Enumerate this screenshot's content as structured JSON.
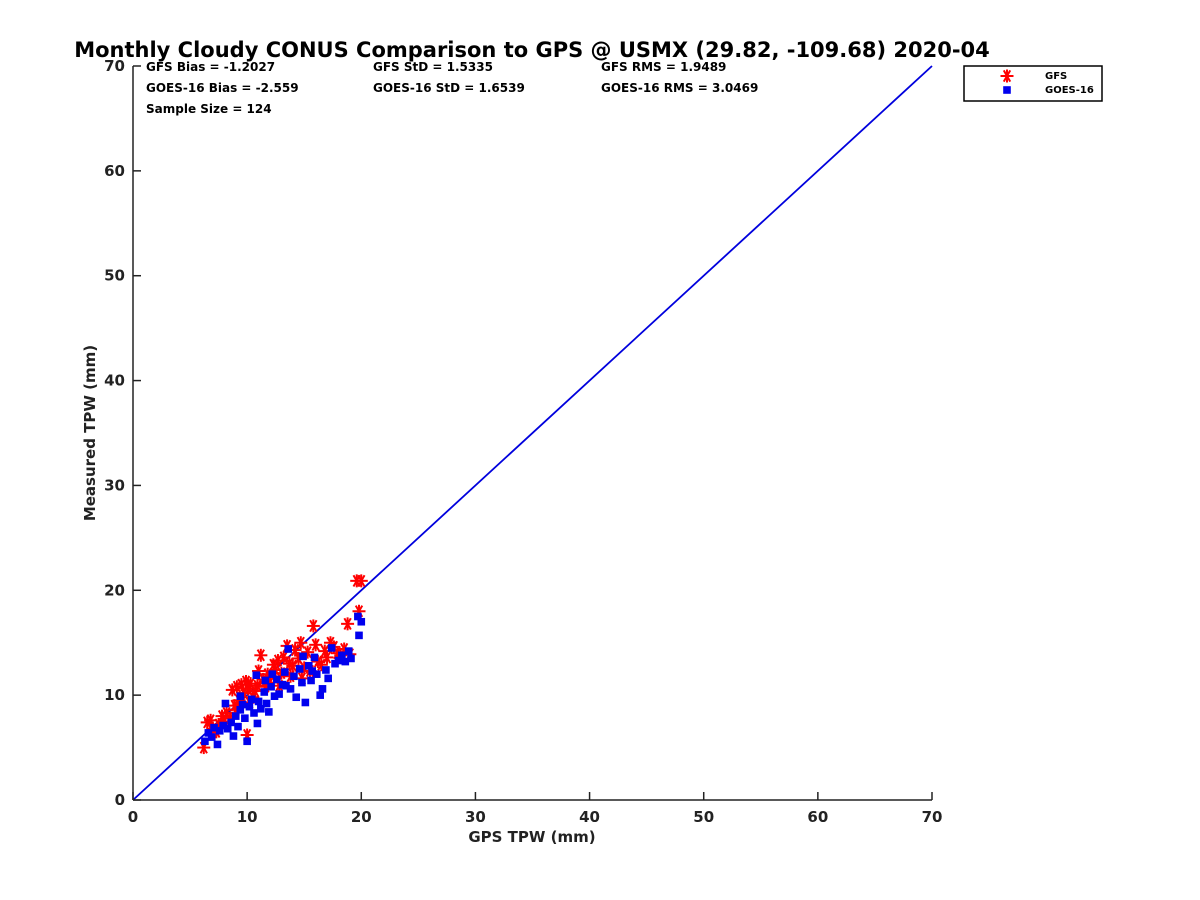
{
  "chart_data": {
    "type": "scatter",
    "title": "Monthly Cloudy CONUS Comparison to GPS @ USMX (29.82, -109.68) 2020-04",
    "xlabel": "GPS TPW (mm)",
    "ylabel": "Measured TPW (mm)",
    "xlim": [
      0,
      70
    ],
    "ylim": [
      0,
      70
    ],
    "xticks": [
      0,
      10,
      20,
      30,
      40,
      50,
      60,
      70
    ],
    "yticks": [
      0,
      10,
      20,
      30,
      40,
      50,
      60,
      70
    ],
    "grid": false,
    "legend_position": "top-right outside",
    "stats": {
      "gfs_bias": "GFS Bias = -1.2027",
      "gfs_std": "GFS StD = 1.5335",
      "gfs_rms": "GFS RMS = 1.9489",
      "goes_bias": "GOES-16 Bias = -2.559",
      "goes_std": "GOES-16 StD = 1.6539",
      "goes_rms": "GOES-16 RMS = 3.0469",
      "sample": "Sample Size = 124"
    },
    "reference_line": {
      "x": [
        0,
        70
      ],
      "y": [
        0,
        70
      ],
      "color": "#0000dd"
    },
    "series": [
      {
        "name": "GFS",
        "marker": "asterisk",
        "color": "#ff0000",
        "points": [
          [
            6.2,
            5.0
          ],
          [
            6.5,
            7.4
          ],
          [
            6.8,
            7.6
          ],
          [
            7.0,
            6.8
          ],
          [
            7.3,
            6.5
          ],
          [
            7.5,
            7.2
          ],
          [
            7.8,
            8.0
          ],
          [
            8.0,
            7.5
          ],
          [
            8.2,
            8.3
          ],
          [
            8.5,
            7.8
          ],
          [
            8.7,
            10.5
          ],
          [
            8.9,
            9.0
          ],
          [
            9.1,
            10.8
          ],
          [
            9.3,
            9.5
          ],
          [
            9.5,
            11.0
          ],
          [
            9.7,
            10.2
          ],
          [
            9.9,
            11.3
          ],
          [
            10.0,
            6.2
          ],
          [
            10.1,
            10.6
          ],
          [
            10.3,
            11.1
          ],
          [
            10.5,
            9.8
          ],
          [
            10.7,
            10.4
          ],
          [
            10.9,
            10.9
          ],
          [
            11.2,
            13.8
          ],
          [
            11.4,
            11.5
          ],
          [
            11.6,
            10.8
          ],
          [
            11.8,
            12.0
          ],
          [
            12.0,
            11.2
          ],
          [
            12.3,
            12.9
          ],
          [
            12.5,
            12.4
          ],
          [
            12.7,
            13.3
          ],
          [
            13.0,
            12.1
          ],
          [
            13.2,
            13.6
          ],
          [
            13.5,
            14.7
          ],
          [
            13.7,
            13.0
          ],
          [
            14.0,
            12.8
          ],
          [
            14.2,
            14.3
          ],
          [
            14.5,
            13.5
          ],
          [
            14.7,
            15.0
          ],
          [
            15.0,
            12.6
          ],
          [
            15.3,
            14.1
          ],
          [
            15.5,
            12.3
          ],
          [
            15.8,
            16.6
          ],
          [
            16.0,
            14.8
          ],
          [
            16.2,
            13.2
          ],
          [
            16.5,
            12.9
          ],
          [
            16.8,
            14.2
          ],
          [
            17.0,
            13.6
          ],
          [
            17.3,
            15.0
          ],
          [
            17.6,
            14.6
          ],
          [
            17.9,
            14.0
          ],
          [
            18.2,
            13.8
          ],
          [
            18.5,
            14.4
          ],
          [
            18.8,
            16.8
          ],
          [
            19.0,
            13.9
          ],
          [
            19.6,
            20.9
          ],
          [
            19.8,
            18.0
          ],
          [
            20.0,
            20.9
          ],
          [
            12.8,
            10.9
          ],
          [
            11.0,
            12.3
          ],
          [
            13.8,
            11.8
          ],
          [
            10.2,
            9.3
          ],
          [
            9.0,
            8.6
          ],
          [
            14.8,
            11.6
          ]
        ]
      },
      {
        "name": "GOES-16",
        "marker": "square",
        "color": "#0000ee",
        "points": [
          [
            6.3,
            5.6
          ],
          [
            6.6,
            6.4
          ],
          [
            6.9,
            6.0
          ],
          [
            7.1,
            6.9
          ],
          [
            7.4,
            5.3
          ],
          [
            7.6,
            6.6
          ],
          [
            7.9,
            7.1
          ],
          [
            8.1,
            9.2
          ],
          [
            8.3,
            6.8
          ],
          [
            8.6,
            7.4
          ],
          [
            8.8,
            6.1
          ],
          [
            9.0,
            8.0
          ],
          [
            9.2,
            7.0
          ],
          [
            9.4,
            8.6
          ],
          [
            9.6,
            9.1
          ],
          [
            9.8,
            7.8
          ],
          [
            10.0,
            5.6
          ],
          [
            10.2,
            8.9
          ],
          [
            10.4,
            9.6
          ],
          [
            10.6,
            8.3
          ],
          [
            10.8,
            11.9
          ],
          [
            11.0,
            9.4
          ],
          [
            11.2,
            8.7
          ],
          [
            11.5,
            10.3
          ],
          [
            11.7,
            9.2
          ],
          [
            11.9,
            8.4
          ],
          [
            12.1,
            10.8
          ],
          [
            12.4,
            9.9
          ],
          [
            12.6,
            11.5
          ],
          [
            12.8,
            10.1
          ],
          [
            13.1,
            11.0
          ],
          [
            13.3,
            12.2
          ],
          [
            13.6,
            14.4
          ],
          [
            13.8,
            10.6
          ],
          [
            14.1,
            11.8
          ],
          [
            14.3,
            9.8
          ],
          [
            14.6,
            12.5
          ],
          [
            14.8,
            11.2
          ],
          [
            15.1,
            9.3
          ],
          [
            15.4,
            12.8
          ],
          [
            15.6,
            11.4
          ],
          [
            15.9,
            13.6
          ],
          [
            16.1,
            12.0
          ],
          [
            16.4,
            10.0
          ],
          [
            16.6,
            10.6
          ],
          [
            16.9,
            12.4
          ],
          [
            17.1,
            11.6
          ],
          [
            17.4,
            14.5
          ],
          [
            17.7,
            13.0
          ],
          [
            18.0,
            13.3
          ],
          [
            18.3,
            13.8
          ],
          [
            18.6,
            13.2
          ],
          [
            18.9,
            14.2
          ],
          [
            19.1,
            13.5
          ],
          [
            19.7,
            17.5
          ],
          [
            19.8,
            15.7
          ],
          [
            20.0,
            17.0
          ],
          [
            12.2,
            12.0
          ],
          [
            13.4,
            10.9
          ],
          [
            14.9,
            13.7
          ],
          [
            9.4,
            9.9
          ],
          [
            10.9,
            7.3
          ],
          [
            15.7,
            12.3
          ],
          [
            11.6,
            11.4
          ]
        ]
      }
    ]
  }
}
